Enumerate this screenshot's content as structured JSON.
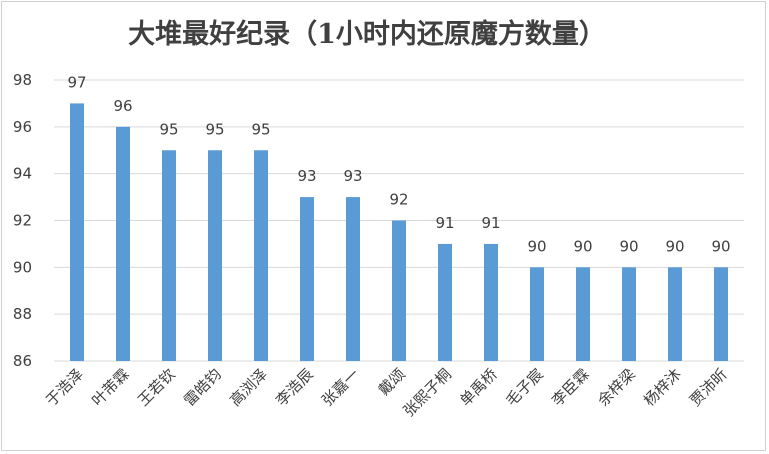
{
  "chart_data": {
    "type": "bar",
    "title": "大堆最好纪录（1小时内还原魔方数量）",
    "xlabel": "",
    "ylabel": "",
    "categories": [
      "于浩泽",
      "叶芾霖",
      "王若钦",
      "雷皓钧",
      "高浏泽",
      "李浩辰",
      "张嘉一",
      "戴颂",
      "张熙子桐",
      "单禹桥",
      "毛子宸",
      "李臣霖",
      "余梓梁",
      "杨梓沐",
      "贾沛昕"
    ],
    "values": [
      97,
      96,
      95,
      95,
      95,
      93,
      93,
      92,
      91,
      91,
      90,
      90,
      90,
      90,
      90
    ],
    "ylim": [
      86,
      98
    ],
    "yticks": [
      86,
      88,
      90,
      92,
      94,
      96,
      98
    ],
    "grid": true,
    "legend": "none",
    "bar_color": "#5b9bd5",
    "grid_color": "#d9d9d9",
    "text_color": "#404040"
  }
}
